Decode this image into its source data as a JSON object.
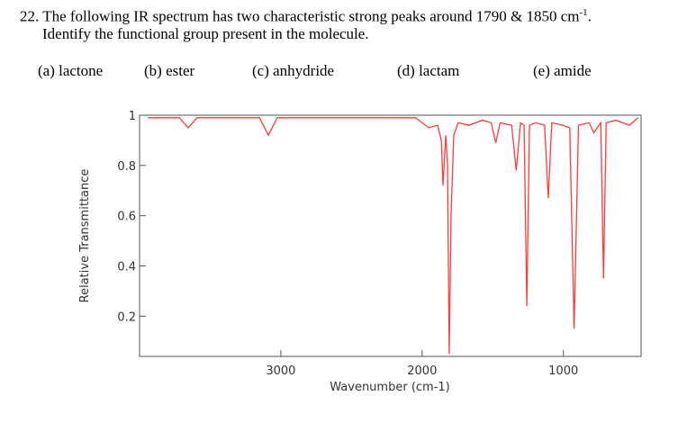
{
  "question": {
    "line1": "22. The following IR spectrum has two characteristic strong peaks around 1790 & 1850 cm",
    "line1_sup": "-1",
    "line1_end": ".",
    "line2": "Identify the functional group present in the molecule.",
    "options": [
      "(a) lactone",
      "(b) ester",
      "(c) anhydride",
      "(d) lactam",
      "(e) amide"
    ]
  },
  "chart_data": {
    "type": "line",
    "x_label": "Wavenumber (cm-1)",
    "y_label": "Relative Transmittance",
    "xlim": [
      4000,
      450
    ],
    "xticks": [
      3000,
      2000,
      1000
    ],
    "ylim": [
      0.04,
      1
    ],
    "yticks": [
      0.2,
      0.4,
      0.6,
      0.8,
      1
    ],
    "x": [
      3940,
      3719,
      3656,
      3593,
      3151,
      3088,
      3025,
      2047,
      1953,
      1890,
      1864,
      1852,
      1833,
      1820,
      1808,
      1795,
      1776,
      1745,
      1669,
      1574,
      1511,
      1479,
      1448,
      1366,
      1334,
      1303,
      1278,
      1259,
      1240,
      1196,
      1133,
      1107,
      1082,
      1006,
      955,
      924,
      893,
      817,
      785,
      735,
      716,
      697,
      628,
      533,
      470
    ],
    "series": [
      {
        "name": "spectrum",
        "color": "#ff3b3b",
        "values": [
          0.99,
          0.99,
          0.95,
          0.99,
          0.99,
          0.92,
          0.99,
          0.99,
          0.95,
          0.96,
          0.9,
          0.72,
          0.92,
          0.8,
          0.05,
          0.6,
          0.92,
          0.97,
          0.96,
          0.98,
          0.97,
          0.89,
          0.97,
          0.96,
          0.78,
          0.97,
          0.96,
          0.24,
          0.96,
          0.97,
          0.96,
          0.67,
          0.97,
          0.96,
          0.95,
          0.15,
          0.96,
          0.97,
          0.93,
          0.97,
          0.35,
          0.97,
          0.98,
          0.96,
          0.99
        ]
      }
    ]
  }
}
